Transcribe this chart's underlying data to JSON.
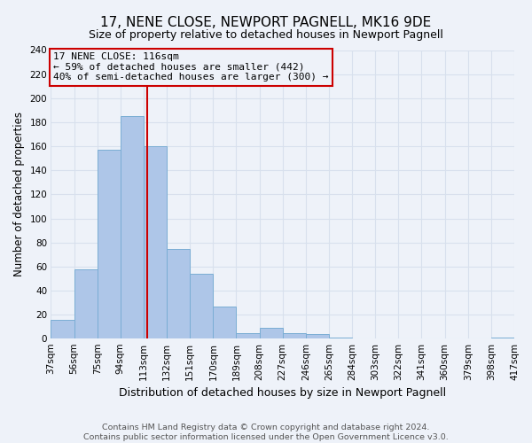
{
  "title": "17, NENE CLOSE, NEWPORT PAGNELL, MK16 9DE",
  "subtitle": "Size of property relative to detached houses in Newport Pagnell",
  "xlabel": "Distribution of detached houses by size in Newport Pagnell",
  "ylabel": "Number of detached properties",
  "bin_edges": [
    37,
    56,
    75,
    94,
    113,
    132,
    151,
    170,
    189,
    208,
    227,
    246,
    265,
    284,
    303,
    322,
    341,
    360,
    379,
    398,
    417
  ],
  "bar_heights": [
    16,
    58,
    157,
    185,
    160,
    75,
    54,
    27,
    5,
    9,
    5,
    4,
    1,
    0,
    0,
    0,
    0,
    0,
    0,
    1
  ],
  "bar_color": "#aec6e8",
  "bar_edge_color": "#7aadd4",
  "vline_x": 116,
  "vline_color": "#cc0000",
  "annotation_lines": [
    "17 NENE CLOSE: 116sqm",
    "← 59% of detached houses are smaller (442)",
    "40% of semi-detached houses are larger (300) →"
  ],
  "annotation_box_edge_color": "#cc0000",
  "annotation_fontsize": 8.0,
  "ylim": [
    0,
    240
  ],
  "yticks": [
    0,
    20,
    40,
    60,
    80,
    100,
    120,
    140,
    160,
    180,
    200,
    220,
    240
  ],
  "tick_labels": [
    "37sqm",
    "56sqm",
    "75sqm",
    "94sqm",
    "113sqm",
    "132sqm",
    "151sqm",
    "170sqm",
    "189sqm",
    "208sqm",
    "227sqm",
    "246sqm",
    "265sqm",
    "284sqm",
    "303sqm",
    "322sqm",
    "341sqm",
    "360sqm",
    "379sqm",
    "398sqm",
    "417sqm"
  ],
  "footer_text": "Contains HM Land Registry data © Crown copyright and database right 2024.\nContains public sector information licensed under the Open Government Licence v3.0.",
  "background_color": "#eef2f9",
  "grid_color": "#d8e0ed",
  "title_fontsize": 11,
  "subtitle_fontsize": 9,
  "xlabel_fontsize": 9,
  "ylabel_fontsize": 8.5,
  "tick_fontsize": 7.5,
  "footer_fontsize": 6.8
}
